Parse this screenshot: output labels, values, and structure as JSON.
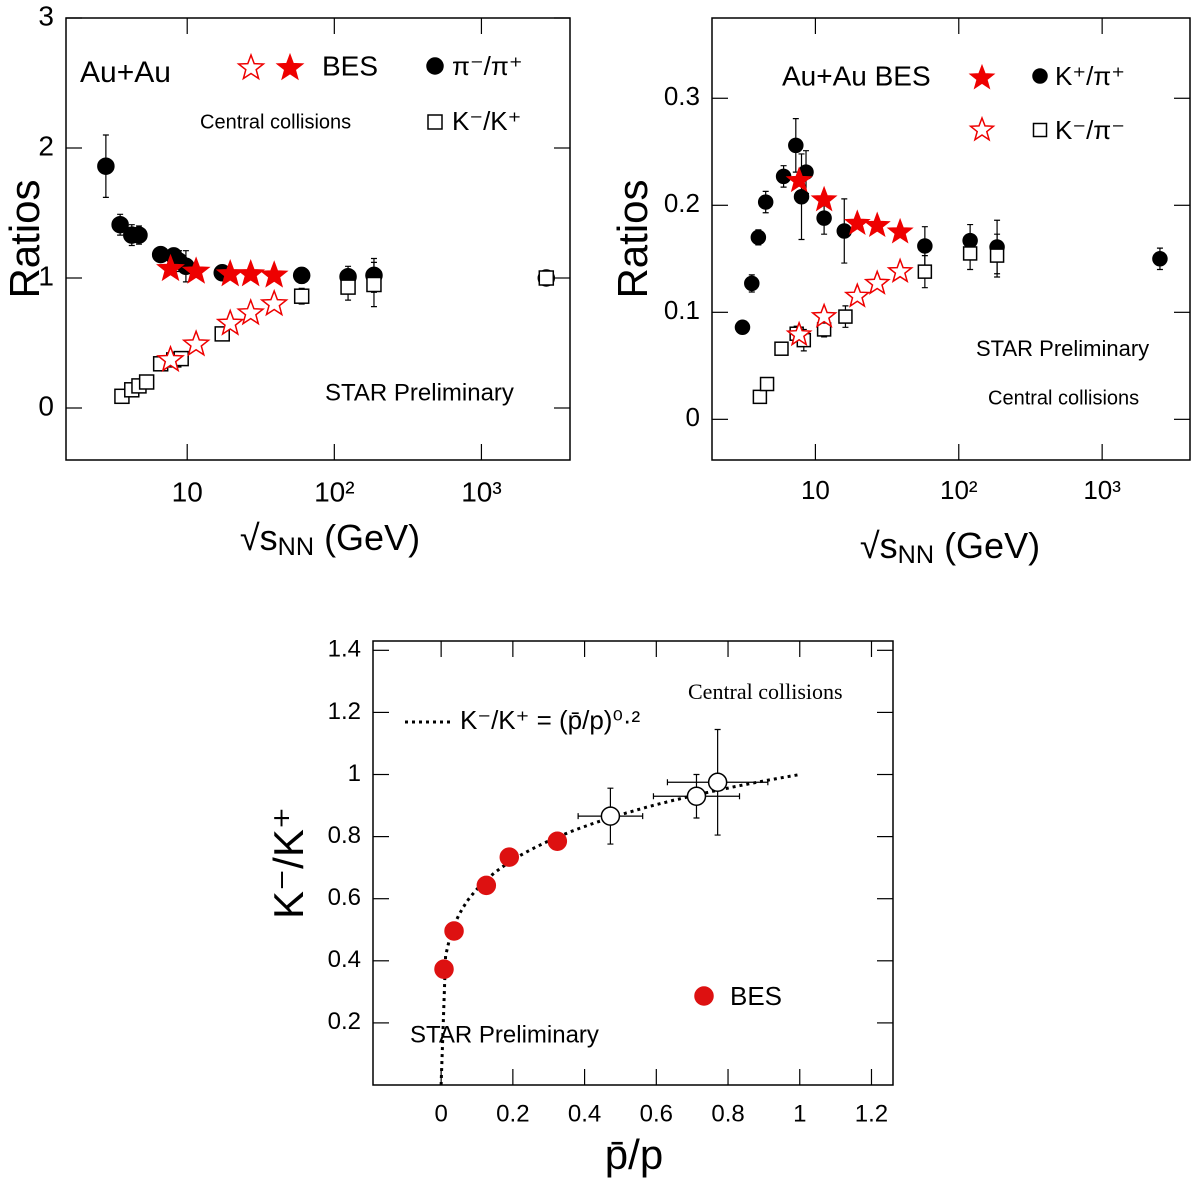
{
  "chart_data": [
    {
      "type": "scatter",
      "xscale": "log",
      "xlim": [
        1.5,
        4000
      ],
      "ylim": [
        -0.4,
        3
      ],
      "xticks": [
        10,
        {
          "value": 100,
          "label": "10²"
        },
        {
          "value": 1000,
          "label": "10³"
        }
      ],
      "yticks": [
        0,
        1,
        2,
        3
      ],
      "ylabel": "Ratios",
      "xlabel": [
        "√s",
        "NN",
        " (GeV)"
      ],
      "annotations": [
        "Au+Au",
        "BES",
        "Central collisions",
        "STAR Preliminary"
      ],
      "series": [
        {
          "name": "π⁻/π⁺",
          "marker": "circle",
          "filled": true,
          "color": "#000000",
          "x": [
            2.8,
            3.5,
            4.2,
            4.7,
            6.6,
            8.1,
            8.8,
            9.8,
            17.3,
            60,
            124,
            186,
            2760
          ],
          "values": [
            1.86,
            1.41,
            1.33,
            1.33,
            1.18,
            1.17,
            1.13,
            1.09,
            1.04,
            1.02,
            1.01,
            1.02,
            1.0
          ],
          "errors": [
            0.24,
            0.08,
            0.08,
            0.07,
            0.05,
            0.05,
            0.08,
            0.12,
            0.04,
            0.06,
            0.08,
            0.13,
            0.04
          ]
        },
        {
          "name": "K⁻/K⁺",
          "marker": "square",
          "filled": false,
          "color": "#000000",
          "x": [
            3.6,
            4.2,
            4.7,
            5.3,
            6.6,
            8.1,
            9.1,
            17.3,
            60,
            124,
            186,
            2760
          ],
          "values": [
            0.09,
            0.14,
            0.17,
            0.2,
            0.34,
            0.37,
            0.38,
            0.57,
            0.86,
            0.93,
            0.95,
            1.0
          ],
          "errors": [
            0.03,
            0.03,
            0.03,
            0.03,
            0.03,
            0.05,
            0.05,
            0.04,
            0.06,
            0.1,
            0.17,
            0.03
          ]
        },
        {
          "marker": "star",
          "filled": true,
          "color": "#ee0000",
          "x": [
            7.7,
            11.5,
            19.6,
            27,
            39
          ],
          "values": [
            1.07,
            1.05,
            1.03,
            1.03,
            1.02
          ]
        },
        {
          "marker": "star",
          "filled": false,
          "color": "#ee0000",
          "x": [
            7.7,
            11.5,
            19.6,
            27,
            39
          ],
          "values": [
            0.37,
            0.49,
            0.65,
            0.73,
            0.8
          ]
        }
      ]
    },
    {
      "type": "scatter",
      "xscale": "log",
      "xlim": [
        1.9,
        4100
      ],
      "ylim": [
        -0.038,
        0.375
      ],
      "xticks": [
        10,
        {
          "value": 100,
          "label": "10²"
        },
        {
          "value": 1000,
          "label": "10³"
        }
      ],
      "yticks": [
        0,
        0.1,
        0.2,
        0.3
      ],
      "ylabel": "Ratios",
      "xlabel": [
        "√s",
        "NN",
        " (GeV)"
      ],
      "annotations": [
        "Au+Au BES",
        "STAR Preliminary",
        "Central collisions"
      ],
      "series": [
        {
          "name": "K⁺/π⁺",
          "marker": "circle",
          "filled": true,
          "color": "#000000",
          "x": [
            3.1,
            3.6,
            4.0,
            4.5,
            6.0,
            7.3,
            8.0,
            8.6,
            11.5,
            15.9,
            58,
            120,
            185,
            2530
          ],
          "values": [
            0.086,
            0.127,
            0.17,
            0.203,
            0.227,
            0.256,
            0.208,
            0.231,
            0.188,
            0.176,
            0.162,
            0.167,
            0.161,
            0.15
          ],
          "errors": [
            0.003,
            0.008,
            0.007,
            0.01,
            0.01,
            0.025,
            0.04,
            0.02,
            0.015,
            0.03,
            0.018,
            0.015,
            0.025,
            0.01
          ]
        },
        {
          "name": "K⁻/π⁻",
          "marker": "square",
          "filled": false,
          "color": "#000000",
          "x": [
            4.1,
            4.6,
            5.8,
            7.4,
            8.3,
            11.5,
            16.2,
            58,
            120,
            185
          ],
          "values": [
            0.021,
            0.033,
            0.066,
            0.08,
            0.074,
            0.084,
            0.096,
            0.138,
            0.155,
            0.153
          ],
          "errors": [
            0.003,
            0.004,
            0.005,
            0.007,
            0.01,
            0.007,
            0.01,
            0.015,
            0.015,
            0.02
          ]
        },
        {
          "marker": "star",
          "filled": true,
          "color": "#ee0000",
          "x": [
            7.7,
            11.5,
            19.6,
            27,
            39
          ],
          "values": [
            0.223,
            0.205,
            0.183,
            0.181,
            0.175
          ]
        },
        {
          "marker": "star",
          "filled": false,
          "color": "#ee0000",
          "x": [
            7.7,
            11.5,
            19.6,
            27,
            39
          ],
          "values": [
            0.079,
            0.096,
            0.115,
            0.127,
            0.138
          ]
        }
      ]
    },
    {
      "type": "scatter",
      "xscale": "linear",
      "xlim": [
        -0.19,
        1.26
      ],
      "ylim": [
        0,
        1.43
      ],
      "xticks": [
        0,
        0.2,
        0.4,
        0.6,
        0.8,
        1,
        1.2
      ],
      "yticks": [
        0.2,
        0.4,
        0.6,
        0.8,
        1,
        1.2,
        1.4
      ],
      "ylabel": "K⁻/K⁺",
      "xlabel": [
        "p̄/p"
      ],
      "annotations": [
        "Central collisions",
        "STAR Preliminary"
      ],
      "curve": {
        "label": "K⁻/K⁺ = (p̄/p)⁰·²",
        "exponent": 0.2,
        "xrange": [
          0,
          1
        ]
      },
      "series": [
        {
          "name": "BES",
          "marker": "circle",
          "filled": true,
          "color": "#dd1111",
          "x": [
            0.008,
            0.036,
            0.126,
            0.19,
            0.324
          ],
          "values": [
            0.373,
            0.496,
            0.643,
            0.734,
            0.785
          ]
        },
        {
          "marker": "circle",
          "filled": false,
          "color": "#000000",
          "x": [
            0.472,
            0.712,
            0.771
          ],
          "values": [
            0.866,
            0.93,
            0.975
          ],
          "errors": [
            0.09,
            0.07,
            0.17
          ],
          "xerrors": [
            0.09,
            0.12,
            0.14
          ]
        }
      ]
    }
  ]
}
